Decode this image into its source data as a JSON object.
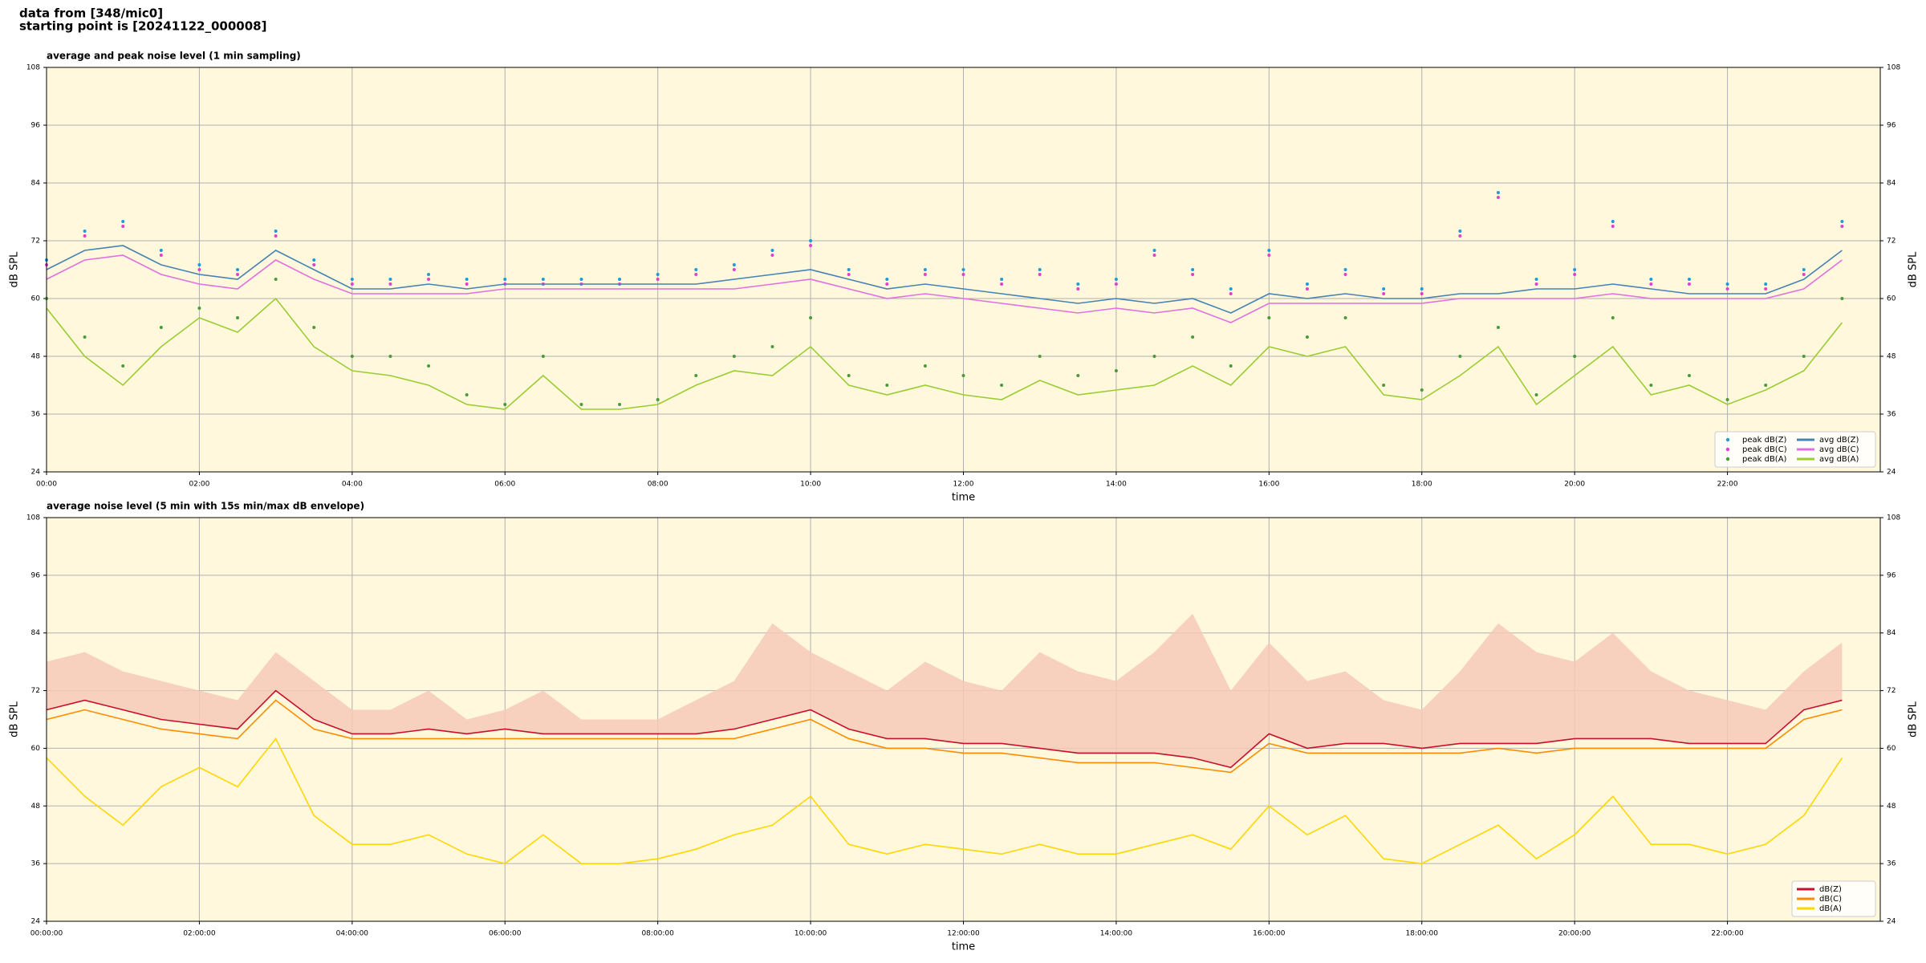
{
  "header": {
    "line1": "data from [348/mic0]",
    "line2": "starting point is [20241122_000008]"
  },
  "chart_data": [
    {
      "type": "line",
      "title": "average and peak noise level (1 min sampling)",
      "xlabel": "time",
      "ylabel": "dB SPL",
      "y2label": "dB SPL",
      "x": [
        0,
        30,
        60,
        90,
        120,
        150,
        180,
        210,
        240,
        270,
        300,
        330,
        360,
        390,
        420,
        450,
        480,
        510,
        540,
        570,
        600,
        630,
        660,
        690,
        720,
        750,
        780,
        810,
        840,
        870,
        900,
        930,
        960,
        990,
        1020,
        1050,
        1080,
        1110,
        1140,
        1170,
        1200,
        1230,
        1260,
        1290,
        1320,
        1350,
        1380,
        1410
      ],
      "xlim": [
        0,
        1440
      ],
      "xticks": [
        {
          "value": 0,
          "label": "00:00"
        },
        {
          "value": 120,
          "label": "02:00"
        },
        {
          "value": 240,
          "label": "04:00"
        },
        {
          "value": 360,
          "label": "06:00"
        },
        {
          "value": 480,
          "label": "08:00"
        },
        {
          "value": 600,
          "label": "10:00"
        },
        {
          "value": 720,
          "label": "12:00"
        },
        {
          "value": 840,
          "label": "14:00"
        },
        {
          "value": 960,
          "label": "16:00"
        },
        {
          "value": 1080,
          "label": "18:00"
        },
        {
          "value": 1200,
          "label": "20:00"
        },
        {
          "value": 1320,
          "label": "22:00"
        }
      ],
      "ylim": [
        24,
        108
      ],
      "yticks": [
        24,
        36,
        48,
        60,
        72,
        84,
        96,
        108
      ],
      "y2lim": [
        24,
        108
      ],
      "y2ticks": [
        24,
        36,
        48,
        60,
        72,
        84,
        96,
        108
      ],
      "grid": true,
      "legend": "lower right",
      "legend_columns": 2,
      "series": [
        {
          "name": "peak dB(Z)",
          "style": "dots",
          "color": "#1f9bd6",
          "values": [
            68,
            74,
            76,
            70,
            67,
            66,
            74,
            68,
            64,
            64,
            65,
            64,
            64,
            64,
            64,
            64,
            65,
            66,
            67,
            70,
            72,
            66,
            64,
            66,
            66,
            64,
            66,
            63,
            64,
            70,
            66,
            62,
            70,
            63,
            66,
            62,
            62,
            74,
            82,
            64,
            66,
            76,
            64,
            64,
            63,
            63,
            66,
            76
          ]
        },
        {
          "name": "peak dB(C)",
          "style": "dots",
          "color": "#e040d0",
          "values": [
            67,
            73,
            75,
            69,
            66,
            65,
            73,
            67,
            63,
            63,
            64,
            63,
            63,
            63,
            63,
            63,
            64,
            65,
            66,
            69,
            71,
            65,
            63,
            65,
            65,
            63,
            65,
            62,
            63,
            69,
            65,
            61,
            69,
            62,
            65,
            61,
            61,
            73,
            81,
            63,
            65,
            75,
            63,
            63,
            62,
            62,
            65,
            75
          ]
        },
        {
          "name": "peak dB(A)",
          "style": "dots",
          "color": "#4a9a3a",
          "values": [
            60,
            52,
            46,
            54,
            58,
            56,
            64,
            54,
            48,
            48,
            46,
            40,
            38,
            48,
            38,
            38,
            39,
            44,
            48,
            50,
            56,
            44,
            42,
            46,
            44,
            42,
            48,
            44,
            45,
            48,
            52,
            46,
            56,
            52,
            56,
            42,
            41,
            48,
            54,
            40,
            48,
            56,
            42,
            44,
            39,
            42,
            48,
            60
          ]
        },
        {
          "name": "avg dB(Z)",
          "style": "line",
          "color": "#4682b4",
          "values": [
            66,
            70,
            71,
            67,
            65,
            64,
            70,
            66,
            62,
            62,
            63,
            62,
            63,
            63,
            63,
            63,
            63,
            63,
            64,
            65,
            66,
            64,
            62,
            63,
            62,
            61,
            60,
            59,
            60,
            59,
            60,
            57,
            61,
            60,
            61,
            60,
            60,
            61,
            61,
            62,
            62,
            63,
            62,
            61,
            61,
            61,
            64,
            70
          ]
        },
        {
          "name": "avg dB(C)",
          "style": "line",
          "color": "#e070e0",
          "values": [
            64,
            68,
            69,
            65,
            63,
            62,
            68,
            64,
            61,
            61,
            61,
            61,
            62,
            62,
            62,
            62,
            62,
            62,
            62,
            63,
            64,
            62,
            60,
            61,
            60,
            59,
            58,
            57,
            58,
            57,
            58,
            55,
            59,
            59,
            59,
            59,
            59,
            60,
            60,
            60,
            60,
            61,
            60,
            60,
            60,
            60,
            62,
            68
          ]
        },
        {
          "name": "avg dB(A)",
          "style": "line",
          "color": "#9acd32",
          "values": [
            58,
            48,
            42,
            50,
            56,
            53,
            60,
            50,
            45,
            44,
            42,
            38,
            37,
            44,
            37,
            37,
            38,
            42,
            45,
            44,
            50,
            42,
            40,
            42,
            40,
            39,
            43,
            40,
            41,
            42,
            46,
            42,
            50,
            48,
            50,
            40,
            39,
            44,
            50,
            38,
            44,
            50,
            40,
            42,
            38,
            41,
            45,
            55
          ]
        }
      ]
    },
    {
      "type": "line",
      "title": "average noise level (5 min with 15s min/max dB envelope)",
      "xlabel": "time",
      "ylabel": "dB SPL",
      "y2label": "dB SPL",
      "x": [
        0,
        30,
        60,
        90,
        120,
        150,
        180,
        210,
        240,
        270,
        300,
        330,
        360,
        390,
        420,
        450,
        480,
        510,
        540,
        570,
        600,
        630,
        660,
        690,
        720,
        750,
        780,
        810,
        840,
        870,
        900,
        930,
        960,
        990,
        1020,
        1050,
        1080,
        1110,
        1140,
        1170,
        1200,
        1230,
        1260,
        1290,
        1320,
        1350,
        1380,
        1410
      ],
      "xlim": [
        0,
        1440
      ],
      "xticks": [
        {
          "value": 0,
          "label": "00:00:00"
        },
        {
          "value": 120,
          "label": "02:00:00"
        },
        {
          "value": 240,
          "label": "04:00:00"
        },
        {
          "value": 360,
          "label": "06:00:00"
        },
        {
          "value": 480,
          "label": "08:00:00"
        },
        {
          "value": 600,
          "label": "10:00:00"
        },
        {
          "value": 720,
          "label": "12:00:00"
        },
        {
          "value": 840,
          "label": "14:00:00"
        },
        {
          "value": 960,
          "label": "16:00:00"
        },
        {
          "value": 1080,
          "label": "18:00:00"
        },
        {
          "value": 1200,
          "label": "20:00:00"
        },
        {
          "value": 1320,
          "label": "22:00:00"
        }
      ],
      "ylim": [
        24,
        108
      ],
      "yticks": [
        24,
        36,
        48,
        60,
        72,
        84,
        96,
        108
      ],
      "y2lim": [
        24,
        108
      ],
      "y2ticks": [
        24,
        36,
        48,
        60,
        72,
        84,
        96,
        108
      ],
      "grid": true,
      "legend": "lower right",
      "legend_columns": 1,
      "envelope": {
        "color": "#f6c9b8",
        "values": [
          78,
          80,
          76,
          74,
          72,
          70,
          80,
          74,
          68,
          68,
          72,
          66,
          68,
          72,
          66,
          66,
          66,
          70,
          74,
          86,
          80,
          76,
          72,
          78,
          74,
          72,
          80,
          76,
          74,
          80,
          88,
          72,
          82,
          74,
          76,
          70,
          68,
          76,
          86,
          80,
          78,
          84,
          76,
          72,
          70,
          68,
          76,
          82
        ]
      },
      "series": [
        {
          "name": "dB(Z)",
          "style": "line",
          "color": "#c8102e",
          "values": [
            68,
            70,
            68,
            66,
            65,
            64,
            72,
            66,
            63,
            63,
            64,
            63,
            64,
            63,
            63,
            63,
            63,
            63,
            64,
            66,
            68,
            64,
            62,
            62,
            61,
            61,
            60,
            59,
            59,
            59,
            58,
            56,
            63,
            60,
            61,
            61,
            60,
            61,
            61,
            61,
            62,
            62,
            62,
            61,
            61,
            61,
            68,
            70
          ]
        },
        {
          "name": "dB(C)",
          "style": "line",
          "color": "#ff8c00",
          "values": [
            66,
            68,
            66,
            64,
            63,
            62,
            70,
            64,
            62,
            62,
            62,
            62,
            62,
            62,
            62,
            62,
            62,
            62,
            62,
            64,
            66,
            62,
            60,
            60,
            59,
            59,
            58,
            57,
            57,
            57,
            56,
            55,
            61,
            59,
            59,
            59,
            59,
            59,
            60,
            59,
            60,
            60,
            60,
            60,
            60,
            60,
            66,
            68
          ]
        },
        {
          "name": "dB(A)",
          "style": "line",
          "color": "#ffd700",
          "values": [
            58,
            50,
            44,
            52,
            56,
            52,
            62,
            46,
            40,
            40,
            42,
            38,
            36,
            42,
            36,
            36,
            37,
            39,
            42,
            44,
            50,
            40,
            38,
            40,
            39,
            38,
            40,
            38,
            38,
            40,
            42,
            39,
            48,
            42,
            46,
            37,
            36,
            40,
            44,
            37,
            42,
            50,
            40,
            40,
            38,
            40,
            46,
            58
          ]
        }
      ]
    }
  ]
}
